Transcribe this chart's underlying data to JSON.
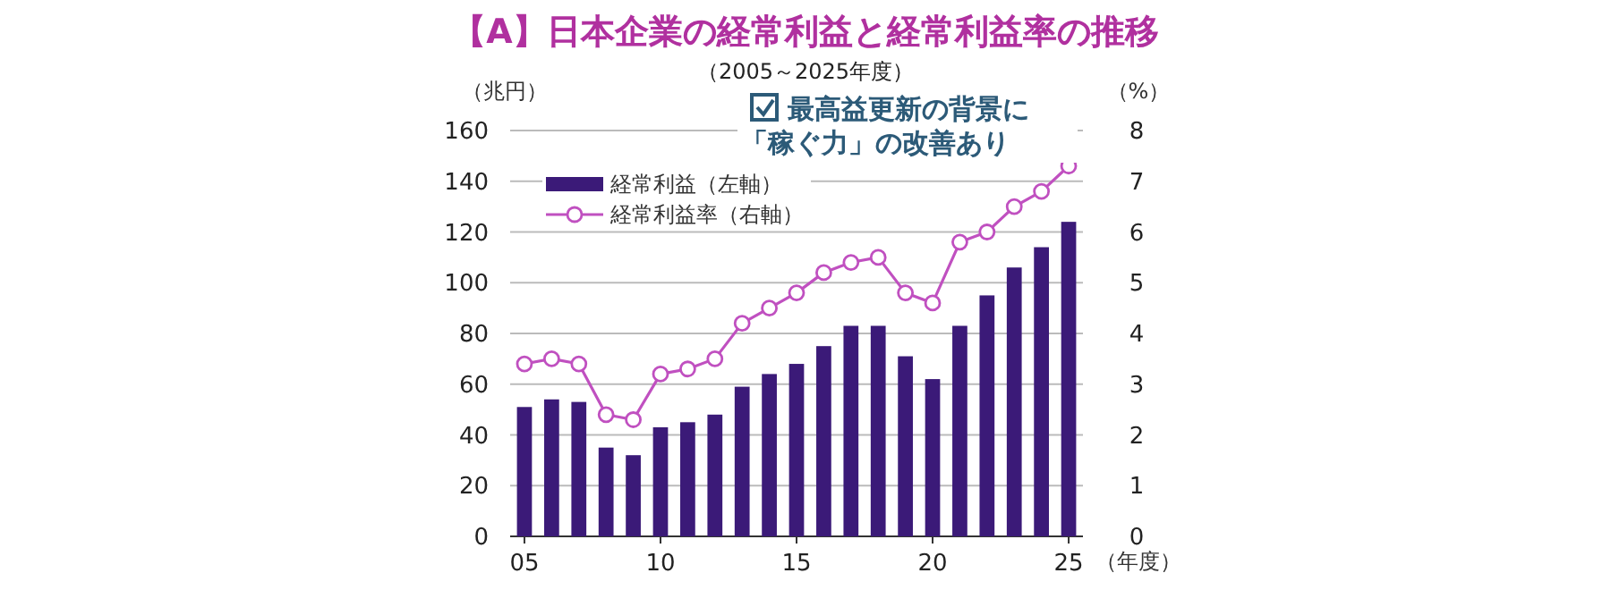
{
  "chart_data": {
    "type": "bar",
    "title": "【A】日本企業の経常利益と経常利益率の推移",
    "subtitle": "（2005～2025年度）",
    "ylabel": "（兆円）",
    "y2label": "（%）",
    "xlabel": "（年度）",
    "annotations": [
      "最高益更新の背景に",
      "「稼ぐ力」の改善あり"
    ],
    "categories": [
      "05",
      null,
      null,
      null,
      null,
      "10",
      null,
      null,
      null,
      null,
      "15",
      null,
      null,
      null,
      null,
      "20",
      null,
      null,
      null,
      null,
      "25"
    ],
    "series": [
      {
        "name": "経常利益（左軸）",
        "color": "#3b1a78",
        "values": [
          51,
          54,
          53,
          35,
          32,
          43,
          45,
          48,
          59,
          64,
          68,
          75,
          83,
          83,
          71,
          62,
          83,
          95,
          106,
          114,
          124
        ]
      },
      {
        "name": "経常利益率（右軸）",
        "type": "line",
        "axis": "y2",
        "color": "#c050c0",
        "marker": "circle",
        "values": [
          3.4,
          3.5,
          3.4,
          2.4,
          2.3,
          3.2,
          3.3,
          3.5,
          4.2,
          4.5,
          4.8,
          5.2,
          5.4,
          5.5,
          4.8,
          4.6,
          5.8,
          6.0,
          6.5,
          6.8,
          7.3
        ]
      }
    ],
    "ylim": [
      0,
      160
    ],
    "yticks": [
      0,
      20,
      40,
      60,
      80,
      100,
      120,
      140,
      160
    ],
    "y2lim": [
      0,
      8
    ],
    "y2ticks": [
      0,
      1,
      2,
      3,
      4,
      5,
      6,
      7,
      8
    ],
    "grid": "y",
    "legend": "top left"
  }
}
